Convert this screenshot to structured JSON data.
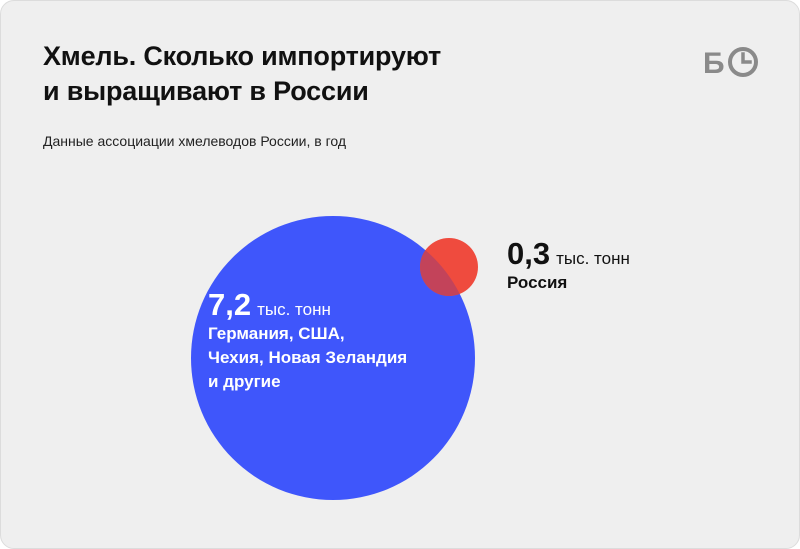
{
  "title_lines": [
    "Хмель. Сколько импортируют",
    "и выращивают в России"
  ],
  "subtitle": "Данные ассоциации хмелеводов России, в год",
  "logo": {
    "text": "БО",
    "icon": "clock-icon",
    "color": "#8a8a8a"
  },
  "colors": {
    "background": "#efefef",
    "import": "#3f56fb",
    "russia": "#ef4b3e",
    "overlap": "#c3435a"
  },
  "chart_data": {
    "type": "bubble",
    "unit": "тыс. тонн",
    "items": [
      {
        "id": "import",
        "value": 7.2,
        "value_text": "7,2",
        "desc": "Германия, США,\nЧехия, Новая Зеландия\nи другие"
      },
      {
        "id": "russia",
        "value": 0.3,
        "value_text": "0,3",
        "desc": "Россия"
      }
    ]
  }
}
